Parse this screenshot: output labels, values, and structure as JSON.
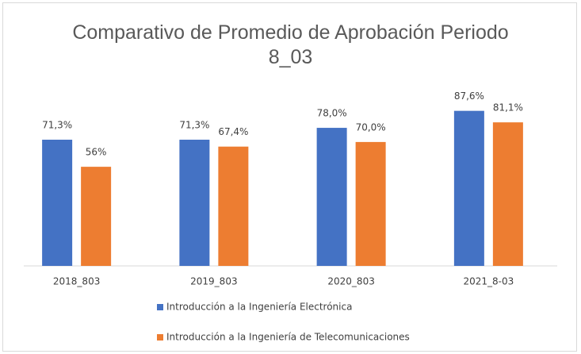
{
  "chart_data": {
    "type": "bar",
    "title": "Comparativo  de Promedio de Aprobación Periodo 8_03",
    "categories": [
      "2018_803",
      "2019_803",
      "2020_803",
      "2021_8-03"
    ],
    "series": [
      {
        "name": "Introducción a la Ingeniería Electrónica",
        "color": "#4472c4",
        "values": [
          71.3,
          71.3,
          78.0,
          87.6
        ],
        "value_labels": [
          "71,3%",
          "71,3%",
          "78,0%",
          "87,6%"
        ]
      },
      {
        "name": "Introducción a la Ingeniería de Telecomunicaciones",
        "color": "#ed7d31",
        "values": [
          56,
          67.4,
          70.0,
          81.1
        ],
        "value_labels": [
          "56%",
          "67,4%",
          "70,0%",
          "81,1%"
        ]
      }
    ],
    "legend": "bottom"
  }
}
